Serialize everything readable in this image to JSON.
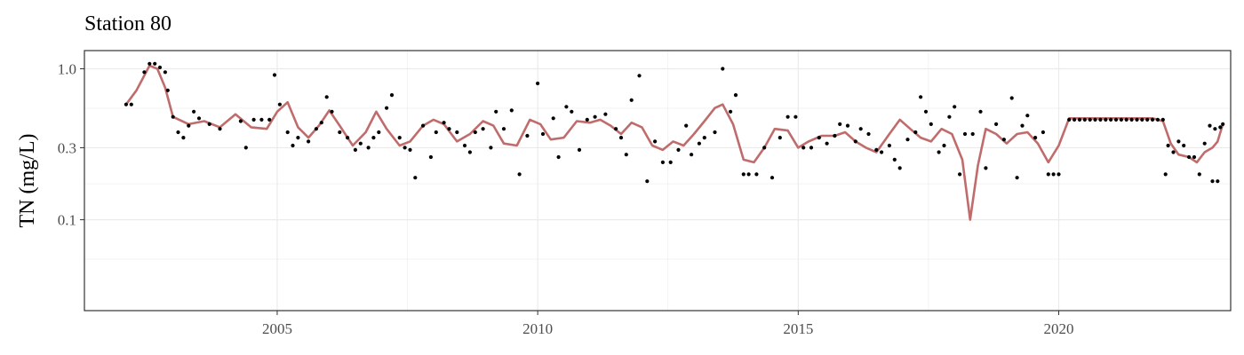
{
  "chart_data": {
    "type": "scatter",
    "title": "Station 80",
    "xlabel": "",
    "ylabel": "TN (mg/L)",
    "y_scale": "log10",
    "xlim": [
      2001.3,
      2023.3
    ],
    "ylim": [
      0.025,
      1.32
    ],
    "x_ticks": [
      2005,
      2010,
      2015,
      2020
    ],
    "x_tick_labels": [
      "2005",
      "2010",
      "2015",
      "2020"
    ],
    "y_ticks": [
      0.1,
      0.3,
      1.0
    ],
    "y_tick_labels": [
      "0.1",
      "0.3",
      "1.0"
    ],
    "grid": true,
    "legend": "none",
    "colors": {
      "points": "#000000",
      "trend": "#c06c6c",
      "grid": "#ebebeb",
      "border": "#333333"
    },
    "series": [
      {
        "type": "scatter",
        "points": [
          [
            2002.1,
            0.58
          ],
          [
            2002.2,
            0.58
          ],
          [
            2002.45,
            0.95
          ],
          [
            2002.55,
            1.08
          ],
          [
            2002.65,
            1.08
          ],
          [
            2002.75,
            1.02
          ],
          [
            2002.85,
            0.95
          ],
          [
            2002.9,
            0.72
          ],
          [
            2003.0,
            0.48
          ],
          [
            2003.1,
            0.38
          ],
          [
            2003.2,
            0.35
          ],
          [
            2003.3,
            0.42
          ],
          [
            2003.4,
            0.52
          ],
          [
            2003.5,
            0.47
          ],
          [
            2003.7,
            0.43
          ],
          [
            2003.9,
            0.4
          ],
          [
            2004.3,
            0.45
          ],
          [
            2004.4,
            0.3
          ],
          [
            2004.55,
            0.46
          ],
          [
            2004.7,
            0.46
          ],
          [
            2004.85,
            0.46
          ],
          [
            2004.95,
            0.91
          ],
          [
            2005.05,
            0.58
          ],
          [
            2005.2,
            0.38
          ],
          [
            2005.3,
            0.31
          ],
          [
            2005.4,
            0.35
          ],
          [
            2005.6,
            0.33
          ],
          [
            2005.75,
            0.4
          ],
          [
            2005.85,
            0.44
          ],
          [
            2005.95,
            0.65
          ],
          [
            2006.05,
            0.52
          ],
          [
            2006.2,
            0.38
          ],
          [
            2006.35,
            0.35
          ],
          [
            2006.5,
            0.29
          ],
          [
            2006.6,
            0.32
          ],
          [
            2006.75,
            0.3
          ],
          [
            2006.85,
            0.35
          ],
          [
            2006.95,
            0.38
          ],
          [
            2007.1,
            0.55
          ],
          [
            2007.2,
            0.67
          ],
          [
            2007.35,
            0.35
          ],
          [
            2007.45,
            0.3
          ],
          [
            2007.55,
            0.29
          ],
          [
            2007.65,
            0.19
          ],
          [
            2007.8,
            0.42
          ],
          [
            2007.95,
            0.26
          ],
          [
            2008.05,
            0.38
          ],
          [
            2008.2,
            0.44
          ],
          [
            2008.3,
            0.4
          ],
          [
            2008.45,
            0.38
          ],
          [
            2008.6,
            0.31
          ],
          [
            2008.7,
            0.28
          ],
          [
            2008.8,
            0.38
          ],
          [
            2008.95,
            0.4
          ],
          [
            2009.1,
            0.3
          ],
          [
            2009.2,
            0.52
          ],
          [
            2009.35,
            0.4
          ],
          [
            2009.5,
            0.53
          ],
          [
            2009.65,
            0.2
          ],
          [
            2009.8,
            0.36
          ],
          [
            2010.0,
            0.8
          ],
          [
            2010.1,
            0.37
          ],
          [
            2010.3,
            0.47
          ],
          [
            2010.4,
            0.26
          ],
          [
            2010.55,
            0.56
          ],
          [
            2010.65,
            0.52
          ],
          [
            2010.8,
            0.29
          ],
          [
            2010.95,
            0.46
          ],
          [
            2011.1,
            0.48
          ],
          [
            2011.3,
            0.5
          ],
          [
            2011.5,
            0.4
          ],
          [
            2011.6,
            0.35
          ],
          [
            2011.7,
            0.27
          ],
          [
            2011.8,
            0.62
          ],
          [
            2011.95,
            0.9
          ],
          [
            2012.1,
            0.18
          ],
          [
            2012.25,
            0.33
          ],
          [
            2012.4,
            0.24
          ],
          [
            2012.55,
            0.24
          ],
          [
            2012.7,
            0.29
          ],
          [
            2012.85,
            0.42
          ],
          [
            2012.95,
            0.27
          ],
          [
            2013.1,
            0.32
          ],
          [
            2013.2,
            0.35
          ],
          [
            2013.4,
            0.38
          ],
          [
            2013.55,
            1.0
          ],
          [
            2013.7,
            0.52
          ],
          [
            2013.8,
            0.67
          ],
          [
            2013.95,
            0.2
          ],
          [
            2014.05,
            0.2
          ],
          [
            2014.2,
            0.2
          ],
          [
            2014.35,
            0.3
          ],
          [
            2014.5,
            0.19
          ],
          [
            2014.65,
            0.35
          ],
          [
            2014.8,
            0.48
          ],
          [
            2014.95,
            0.48
          ],
          [
            2015.1,
            0.3
          ],
          [
            2015.25,
            0.3
          ],
          [
            2015.4,
            0.35
          ],
          [
            2015.55,
            0.32
          ],
          [
            2015.7,
            0.36
          ],
          [
            2015.8,
            0.43
          ],
          [
            2015.95,
            0.42
          ],
          [
            2016.1,
            0.33
          ],
          [
            2016.2,
            0.4
          ],
          [
            2016.35,
            0.37
          ],
          [
            2016.5,
            0.29
          ],
          [
            2016.6,
            0.28
          ],
          [
            2016.75,
            0.31
          ],
          [
            2016.85,
            0.25
          ],
          [
            2016.95,
            0.22
          ],
          [
            2017.1,
            0.34
          ],
          [
            2017.25,
            0.38
          ],
          [
            2017.35,
            0.65
          ],
          [
            2017.45,
            0.52
          ],
          [
            2017.55,
            0.43
          ],
          [
            2017.7,
            0.28
          ],
          [
            2017.8,
            0.31
          ],
          [
            2017.9,
            0.48
          ],
          [
            2018.0,
            0.56
          ],
          [
            2018.1,
            0.2
          ],
          [
            2018.2,
            0.37
          ],
          [
            2018.35,
            0.37
          ],
          [
            2018.5,
            0.52
          ],
          [
            2018.6,
            0.22
          ],
          [
            2018.8,
            0.43
          ],
          [
            2018.95,
            0.34
          ],
          [
            2019.1,
            0.64
          ],
          [
            2019.2,
            0.19
          ],
          [
            2019.3,
            0.42
          ],
          [
            2019.4,
            0.49
          ],
          [
            2019.55,
            0.35
          ],
          [
            2019.7,
            0.38
          ],
          [
            2019.8,
            0.2
          ],
          [
            2019.9,
            0.2
          ],
          [
            2020.0,
            0.2
          ],
          [
            2020.2,
            0.46
          ],
          [
            2020.3,
            0.46
          ],
          [
            2020.4,
            0.46
          ],
          [
            2020.5,
            0.46
          ],
          [
            2020.6,
            0.46
          ],
          [
            2020.7,
            0.46
          ],
          [
            2020.8,
            0.46
          ],
          [
            2020.9,
            0.46
          ],
          [
            2021.0,
            0.46
          ],
          [
            2021.1,
            0.46
          ],
          [
            2021.2,
            0.46
          ],
          [
            2021.3,
            0.46
          ],
          [
            2021.4,
            0.46
          ],
          [
            2021.5,
            0.46
          ],
          [
            2021.6,
            0.46
          ],
          [
            2021.7,
            0.46
          ],
          [
            2021.8,
            0.46
          ],
          [
            2021.9,
            0.46
          ],
          [
            2022.0,
            0.46
          ],
          [
            2022.05,
            0.2
          ],
          [
            2022.1,
            0.31
          ],
          [
            2022.2,
            0.28
          ],
          [
            2022.3,
            0.33
          ],
          [
            2022.4,
            0.31
          ],
          [
            2022.5,
            0.26
          ],
          [
            2022.6,
            0.26
          ],
          [
            2022.7,
            0.2
          ],
          [
            2022.8,
            0.32
          ],
          [
            2022.9,
            0.42
          ],
          [
            2022.95,
            0.18
          ],
          [
            2023.0,
            0.4
          ],
          [
            2023.05,
            0.18
          ],
          [
            2023.1,
            0.41
          ],
          [
            2023.15,
            0.43
          ]
        ]
      },
      {
        "type": "line",
        "name": "",
        "points": [
          [
            2002.1,
            0.58
          ],
          [
            2002.3,
            0.72
          ],
          [
            2002.55,
            1.05
          ],
          [
            2002.7,
            1.0
          ],
          [
            2002.85,
            0.75
          ],
          [
            2003.0,
            0.48
          ],
          [
            2003.3,
            0.43
          ],
          [
            2003.6,
            0.45
          ],
          [
            2003.9,
            0.41
          ],
          [
            2004.2,
            0.5
          ],
          [
            2004.5,
            0.41
          ],
          [
            2004.8,
            0.4
          ],
          [
            2005.0,
            0.52
          ],
          [
            2005.2,
            0.6
          ],
          [
            2005.4,
            0.41
          ],
          [
            2005.6,
            0.35
          ],
          [
            2005.8,
            0.42
          ],
          [
            2006.0,
            0.53
          ],
          [
            2006.2,
            0.42
          ],
          [
            2006.45,
            0.31
          ],
          [
            2006.7,
            0.38
          ],
          [
            2006.9,
            0.52
          ],
          [
            2007.1,
            0.4
          ],
          [
            2007.35,
            0.31
          ],
          [
            2007.55,
            0.33
          ],
          [
            2007.8,
            0.42
          ],
          [
            2008.0,
            0.46
          ],
          [
            2008.2,
            0.43
          ],
          [
            2008.45,
            0.33
          ],
          [
            2008.7,
            0.37
          ],
          [
            2008.95,
            0.45
          ],
          [
            2009.15,
            0.42
          ],
          [
            2009.35,
            0.32
          ],
          [
            2009.6,
            0.31
          ],
          [
            2009.85,
            0.46
          ],
          [
            2010.05,
            0.43
          ],
          [
            2010.25,
            0.34
          ],
          [
            2010.5,
            0.35
          ],
          [
            2010.75,
            0.45
          ],
          [
            2011.0,
            0.44
          ],
          [
            2011.2,
            0.46
          ],
          [
            2011.4,
            0.42
          ],
          [
            2011.6,
            0.37
          ],
          [
            2011.8,
            0.44
          ],
          [
            2012.0,
            0.41
          ],
          [
            2012.2,
            0.31
          ],
          [
            2012.4,
            0.29
          ],
          [
            2012.6,
            0.33
          ],
          [
            2012.8,
            0.31
          ],
          [
            2013.0,
            0.37
          ],
          [
            2013.2,
            0.45
          ],
          [
            2013.4,
            0.55
          ],
          [
            2013.55,
            0.58
          ],
          [
            2013.75,
            0.43
          ],
          [
            2013.95,
            0.25
          ],
          [
            2014.15,
            0.24
          ],
          [
            2014.35,
            0.3
          ],
          [
            2014.55,
            0.4
          ],
          [
            2014.8,
            0.39
          ],
          [
            2015.0,
            0.3
          ],
          [
            2015.2,
            0.33
          ],
          [
            2015.45,
            0.36
          ],
          [
            2015.7,
            0.36
          ],
          [
            2015.9,
            0.38
          ],
          [
            2016.1,
            0.33
          ],
          [
            2016.3,
            0.3
          ],
          [
            2016.5,
            0.28
          ],
          [
            2016.75,
            0.37
          ],
          [
            2016.95,
            0.46
          ],
          [
            2017.15,
            0.4
          ],
          [
            2017.35,
            0.35
          ],
          [
            2017.55,
            0.33
          ],
          [
            2017.75,
            0.4
          ],
          [
            2017.95,
            0.37
          ],
          [
            2018.15,
            0.25
          ],
          [
            2018.3,
            0.1
          ],
          [
            2018.45,
            0.23
          ],
          [
            2018.6,
            0.4
          ],
          [
            2018.8,
            0.37
          ],
          [
            2019.0,
            0.32
          ],
          [
            2019.2,
            0.37
          ],
          [
            2019.4,
            0.38
          ],
          [
            2019.6,
            0.32
          ],
          [
            2019.8,
            0.24
          ],
          [
            2020.0,
            0.31
          ],
          [
            2020.2,
            0.47
          ],
          [
            2020.6,
            0.47
          ],
          [
            2021.0,
            0.47
          ],
          [
            2021.4,
            0.47
          ],
          [
            2021.8,
            0.47
          ],
          [
            2022.0,
            0.45
          ],
          [
            2022.15,
            0.32
          ],
          [
            2022.3,
            0.27
          ],
          [
            2022.5,
            0.26
          ],
          [
            2022.65,
            0.24
          ],
          [
            2022.8,
            0.28
          ],
          [
            2022.95,
            0.3
          ],
          [
            2023.05,
            0.33
          ],
          [
            2023.15,
            0.43
          ]
        ]
      }
    ]
  }
}
